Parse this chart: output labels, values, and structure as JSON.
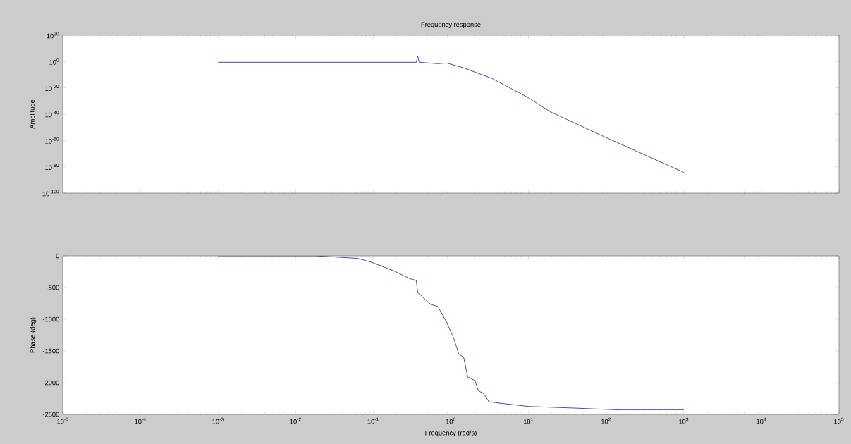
{
  "chart_data": [
    {
      "type": "line",
      "title": "Frequency response",
      "ylabel": "Amplitude",
      "log": "xy",
      "tick_labels": "y",
      "xlim": [
        1e-05,
        100000.0
      ],
      "ylim": [
        1e-100,
        1e+20
      ],
      "xticks": [
        {
          "value": 1e-05,
          "label": null
        },
        {
          "value": 0.0001,
          "label": null
        },
        {
          "value": 0.001,
          "label": null
        },
        {
          "value": 0.01,
          "label": null
        },
        {
          "value": 0.1,
          "label": null
        },
        {
          "value": 1,
          "label": null
        },
        {
          "value": 10,
          "label": null
        },
        {
          "value": 100,
          "label": null
        },
        {
          "value": 1000,
          "label": null
        },
        {
          "value": 10000.0,
          "label": null
        },
        {
          "value": 100000.0,
          "label": null
        }
      ],
      "yticks": [
        {
          "value": 1e-100,
          "label": "10$^{-100}$"
        },
        {
          "value": 1e-80,
          "label": "10$^{-80}$"
        },
        {
          "value": 1e-60,
          "label": "10$^{-60}$"
        },
        {
          "value": 1e-40,
          "label": "10$^{-40}$"
        },
        {
          "value": 1e-20,
          "label": "10$^{-20}$"
        },
        {
          "value": 1,
          "label": "10$^{0}$"
        },
        {
          "value": 1e+20,
          "label": "10$^{20}$"
        }
      ],
      "series": [
        {
          "color": "#3c3ca8",
          "x": [
            0.001,
            0.359,
            0.374,
            0.39,
            0.68,
            0.88,
            1.46,
            3.4,
            9.5,
            19,
            88,
            1000
          ],
          "values": [
            0.3,
            0.3,
            20000.0,
            0.3,
            0.025,
            0.08,
            1.6e-05,
            1.3e-13,
            1.6e-27,
            8e-39,
            5e-57,
            6e-85
          ]
        }
      ]
    },
    {
      "type": "line",
      "xlabel": "Frequency (rad/s)",
      "ylabel": "Phase (deg)",
      "log": "x",
      "xlim": [
        1e-05,
        100000.0
      ],
      "ylim": [
        -2500,
        0
      ],
      "xticks": [
        {
          "value": 1e-05,
          "label": "10$^{-5}$"
        },
        {
          "value": 0.0001,
          "label": "10$^{-4}$"
        },
        {
          "value": 0.001,
          "label": "10$^{-3}$"
        },
        {
          "value": 0.01,
          "label": "10$^{-2}$"
        },
        {
          "value": 0.1,
          "label": "10$^{-1}$"
        },
        {
          "value": 1,
          "label": "10$^{0}$"
        },
        {
          "value": 10,
          "label": "10$^{1}$"
        },
        {
          "value": 100,
          "label": "10$^{2}$"
        },
        {
          "value": 1000,
          "label": "10$^{3}$"
        },
        {
          "value": 10000.0,
          "label": "10$^{4}$"
        },
        {
          "value": 100000.0,
          "label": "10$^{5}$"
        }
      ],
      "yticks": [
        -2500,
        -2000,
        -1500,
        -1000,
        -500,
        0
      ],
      "series": [
        {
          "color": "#3c3ca8",
          "x": [
            0.001,
            0.01,
            0.018,
            0.063,
            0.095,
            0.19,
            0.29,
            0.359,
            0.374,
            0.55,
            0.68,
            0.88,
            1.09,
            1.26,
            1.46,
            1.65,
            2.04,
            2.26,
            2.62,
            3.09,
            4.7,
            10.2,
            38,
            155,
            1000
          ],
          "values": [
            0,
            0,
            0,
            -40,
            -100,
            -245,
            -355,
            -390,
            -580,
            -765,
            -800,
            -1045,
            -1300,
            -1545,
            -1600,
            -1910,
            -1965,
            -2130,
            -2165,
            -2300,
            -2330,
            -2375,
            -2400,
            -2430,
            -2430
          ]
        }
      ]
    }
  ]
}
